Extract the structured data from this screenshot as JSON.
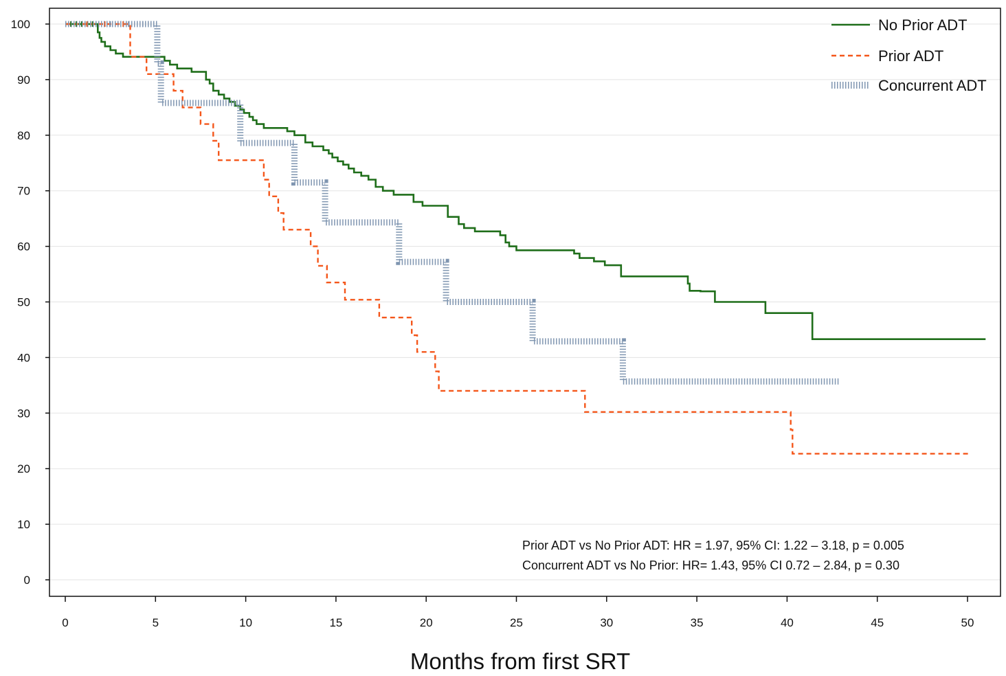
{
  "chart_data": {
    "type": "line",
    "title": "",
    "xlabel": "Months from first SRT",
    "ylabel": "",
    "xlim": [
      0,
      52
    ],
    "ylim": [
      -3,
      103
    ],
    "x_ticks": [
      0,
      5,
      10,
      15,
      20,
      25,
      30,
      35,
      40,
      45,
      50
    ],
    "y_ticks": [
      0,
      10,
      20,
      30,
      40,
      50,
      60,
      70,
      80,
      90,
      100
    ],
    "grid": "horizontal",
    "legend_position": "top-right",
    "series": [
      {
        "name": "No Prior ADT",
        "color": "#1f6e1a",
        "style": "solid",
        "x": [
          0,
          1.8,
          1.9,
          2.0,
          2.2,
          2.5,
          2.8,
          3.2,
          3.7,
          5.5,
          5.8,
          6.2,
          7.0,
          7.8,
          8.0,
          8.2,
          8.5,
          8.8,
          9.1,
          9.4,
          9.7,
          9.9,
          10.2,
          10.4,
          10.6,
          11.0,
          11.8,
          12.3,
          12.7,
          13.3,
          13.7,
          14.3,
          14.6,
          14.8,
          15.1,
          15.4,
          15.7,
          16.0,
          16.4,
          16.8,
          17.2,
          17.6,
          18.2,
          19.3,
          19.8,
          20.2,
          21.2,
          21.8,
          22.1,
          22.7,
          24.1,
          24.4,
          24.6,
          25.0,
          28.2,
          28.5,
          29.3,
          29.9,
          30.3,
          30.8,
          34.4,
          34.5,
          34.6,
          35.2,
          36.0,
          36.2,
          38.8,
          39.0,
          41.3,
          41.4,
          51.0
        ],
        "y": [
          100,
          98.5,
          97.5,
          96.8,
          96.0,
          95.3,
          94.7,
          94.1,
          94.1,
          93.4,
          92.7,
          92.0,
          91.4,
          90.0,
          89.3,
          88.0,
          87.3,
          86.6,
          86.0,
          85.3,
          84.6,
          84.0,
          83.3,
          82.7,
          82.0,
          81.3,
          81.3,
          80.7,
          80.0,
          78.7,
          78.0,
          77.3,
          76.7,
          76.0,
          75.3,
          74.7,
          74.0,
          73.3,
          72.7,
          72.0,
          70.7,
          70.0,
          69.3,
          68.0,
          67.3,
          67.3,
          65.3,
          64.0,
          63.3,
          62.7,
          62.0,
          60.7,
          60.0,
          59.3,
          58.7,
          57.9,
          57.3,
          56.6,
          56.6,
          54.6,
          54.6,
          53.3,
          52.0,
          51.9,
          50.0,
          50.0,
          48.0,
          48.0,
          48.0,
          43.3,
          43.3
        ]
      },
      {
        "name": "Prior ADT",
        "color": "#f4561a",
        "style": "dashed",
        "x": [
          0,
          3.6,
          4.5,
          5.0,
          6.0,
          6.5,
          7.5,
          8.2,
          8.5,
          10.8,
          11.0,
          11.3,
          11.8,
          12.1,
          13.6,
          14.0,
          14.5,
          15.0,
          15.5,
          17.0,
          17.4,
          18.5,
          19.2,
          19.5,
          20.1,
          20.5,
          20.7,
          28.5,
          28.8,
          38.5,
          40.2,
          40.3,
          50.2
        ],
        "y": [
          100,
          94.1,
          91.0,
          91.0,
          88.0,
          85.0,
          82.0,
          79.0,
          75.5,
          75.5,
          72.0,
          69.0,
          66.0,
          63.0,
          60.0,
          56.5,
          53.5,
          53.5,
          50.4,
          50.4,
          47.2,
          47.2,
          44.0,
          41.0,
          41.0,
          37.5,
          34.0,
          34.0,
          30.2,
          30.2,
          27.0,
          22.7,
          22.7
        ]
      },
      {
        "name": "Concurrent ADT",
        "color": "#7f95b0",
        "style": "hatched",
        "x": [
          0,
          5.1,
          5.3,
          9.6,
          9.7,
          12.6,
          12.7,
          14.3,
          14.4,
          18.4,
          18.5,
          21.0,
          21.1,
          25.8,
          25.9,
          30.8,
          30.9,
          42.9
        ],
        "y": [
          100,
          92.9,
          85.8,
          85.8,
          78.6,
          78.6,
          71.5,
          71.5,
          64.3,
          64.3,
          57.2,
          57.2,
          50.0,
          50.0,
          42.9,
          42.9,
          35.7,
          35.7
        ]
      }
    ],
    "annotations": [
      "Prior ADT vs No Prior ADT: HR = 1.97, 95% CI: 1.22 – 3.18, p = 0.005",
      "Concurrent ADT vs No Prior: HR= 1.43, 95% CI 0.72 – 2.84, p = 0.30"
    ]
  }
}
